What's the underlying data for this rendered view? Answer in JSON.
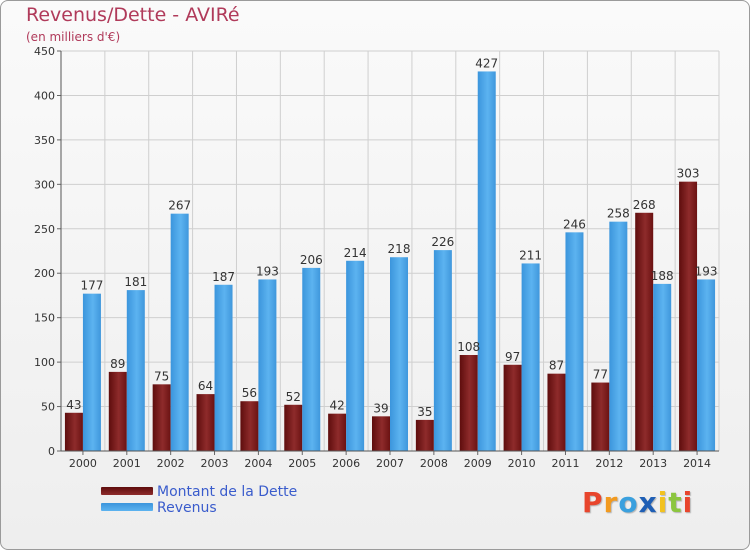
{
  "title": "Revenus/Dette - AVIRé",
  "subtitle": "(en milliers d'€)",
  "chart_data": {
    "type": "bar",
    "categories": [
      "2000",
      "2001",
      "2002",
      "2003",
      "2004",
      "2005",
      "2006",
      "2007",
      "2008",
      "2009",
      "2010",
      "2011",
      "2012",
      "2013",
      "2014"
    ],
    "series": [
      {
        "name": "Montant de la Dette",
        "color": "#7a1616",
        "values": [
          43,
          89,
          75,
          64,
          56,
          52,
          42,
          39,
          35,
          108,
          97,
          87,
          77,
          268,
          303
        ]
      },
      {
        "name": "Revenus",
        "color": "#4aa3e8",
        "values": [
          177,
          181,
          267,
          187,
          193,
          206,
          214,
          218,
          226,
          427,
          211,
          246,
          258,
          188,
          193
        ]
      }
    ],
    "yticks": [
      0,
      50,
      100,
      150,
      200,
      250,
      300,
      350,
      400,
      450
    ],
    "ylim": [
      0,
      450
    ],
    "grid": true,
    "legend_position": "bottom-left"
  },
  "logo": {
    "letters": [
      "P",
      "r",
      "o",
      "x",
      "i",
      "t",
      "i"
    ],
    "colors": [
      "#e8452c",
      "#f29a1f",
      "#3aa0de",
      "#1f5fb5",
      "#f2c21f",
      "#8cc63f",
      "#e8452c"
    ]
  }
}
